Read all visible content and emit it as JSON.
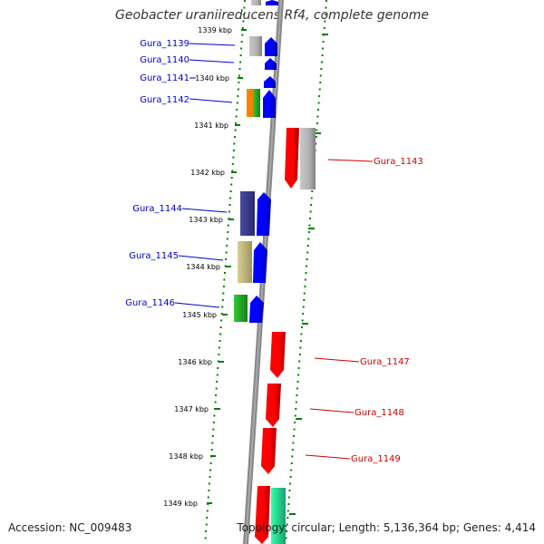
{
  "title": "Geobacter uraniireducens Rf4, complete genome",
  "footer": {
    "accession": "Accession: NC_009483",
    "summary": "Topology: circular; Length: 5,136,364 bp; Genes: 4,414"
  },
  "ticks": [
    {
      "label": "1339 kbp",
      "kbp": 1339
    },
    {
      "label": "1340 kbp",
      "kbp": 1340
    },
    {
      "label": "1341 kbp",
      "kbp": 1341
    },
    {
      "label": "1342 kbp",
      "kbp": 1342
    },
    {
      "label": "1343 kbp",
      "kbp": 1343
    },
    {
      "label": "1344 kbp",
      "kbp": 1344
    },
    {
      "label": "1345 kbp",
      "kbp": 1345
    },
    {
      "label": "1346 kbp",
      "kbp": 1346
    },
    {
      "label": "1347 kbp",
      "kbp": 1347
    },
    {
      "label": "1348 kbp",
      "kbp": 1348
    },
    {
      "label": "1349 kbp",
      "kbp": 1349
    }
  ],
  "gene_labels_left": [
    {
      "name": "Gura_1139",
      "color": "#0000cc"
    },
    {
      "name": "Gura_1140",
      "color": "#0000cc"
    },
    {
      "name": "Gura_1141",
      "color": "#0000cc"
    },
    {
      "name": "Gura_1142",
      "color": "#0000cc"
    },
    {
      "name": "Gura_1144",
      "color": "#0000cc"
    },
    {
      "name": "Gura_1145",
      "color": "#0000cc"
    },
    {
      "name": "Gura_1146",
      "color": "#0000cc"
    }
  ],
  "gene_labels_right": [
    {
      "name": "Gura_1143",
      "color": "#cc0000"
    },
    {
      "name": "Gura_1147",
      "color": "#cc0000"
    },
    {
      "name": "Gura_1148",
      "color": "#cc0000"
    },
    {
      "name": "Gura_1149",
      "color": "#cc0000"
    }
  ],
  "colors": {
    "forward_gene": "#0000ff",
    "reverse_gene": "#ff0000",
    "tick_green": "#008000",
    "backbone": "#888888",
    "blue_label": "#0000cc",
    "red_label": "#cc0000"
  }
}
